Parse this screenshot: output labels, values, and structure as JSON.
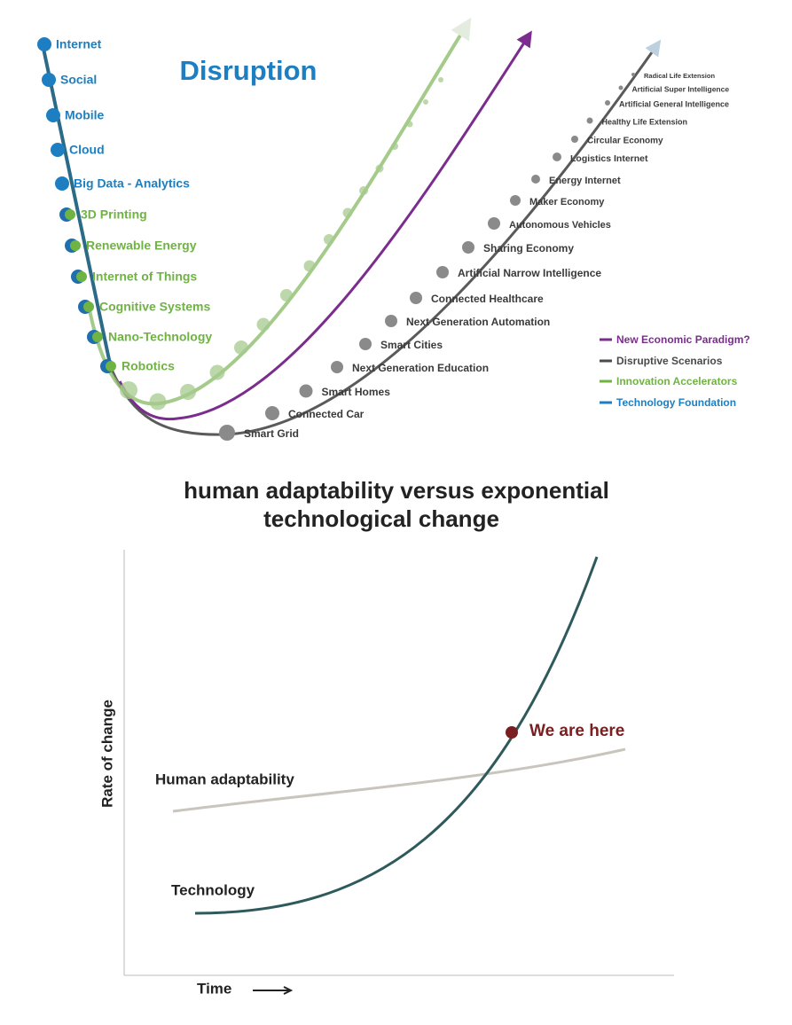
{
  "disruption": {
    "title": "Disruption",
    "technology_foundation": [
      "Internet",
      "Social",
      "Mobile",
      "Cloud",
      "Big Data - Analytics"
    ],
    "innovation_accelerators": [
      "3D Printing",
      "Renewable Energy",
      "Internet of Things",
      "Cognitive Systems",
      "Nano-Technology",
      "Robotics"
    ],
    "disruptive_scenarios": [
      "Smart Grid",
      "Connected Car",
      "Smart Homes",
      "Next Generation Education",
      "Smart Cities",
      "Next Generation Automation",
      "Connected Healthcare",
      "Artificial Narrow Intelligence",
      "Sharing Economy",
      "Autonomous Vehicles",
      "Maker Economy",
      "Energy Internet",
      "Logistics Internet",
      "Circular Economy",
      "Healthy Life Extension",
      "Artificial General Intelligence",
      "Artificial Super Intelligence",
      "Radical Life Extension"
    ],
    "legend": [
      "New Economic Paradigm?",
      "Disruptive Scenarios",
      "Innovation Accelerators",
      "Technology Foundation"
    ]
  },
  "adaptability": {
    "title": [
      "human adaptability versus exponential",
      "technological change"
    ],
    "y_label": "Rate of change",
    "x_label": "Time",
    "curves": [
      "Human adaptability",
      "Technology"
    ],
    "annotation": "We are here"
  }
}
